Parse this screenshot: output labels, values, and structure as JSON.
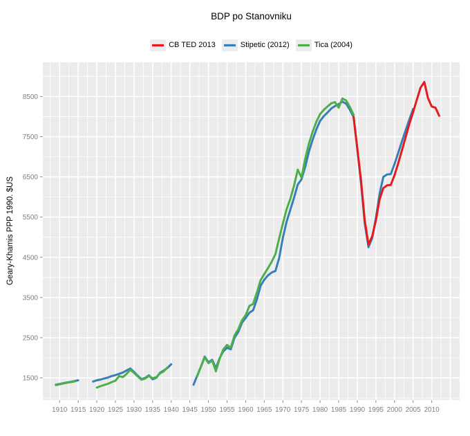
{
  "title": "BDP po Stanovniku",
  "y_axis_label": "Geary-Khamis PPP 1990. $US",
  "legend": [
    {
      "label": "CB TED 2013",
      "color": "#E41A1C"
    },
    {
      "label": "Stipetic (2012)",
      "color": "#377EB8"
    },
    {
      "label": "Tica (2004)",
      "color": "#4DAF4A"
    }
  ],
  "colors": {
    "panel_bg": "#EBEBEB",
    "grid": "#FFFFFF",
    "tick_mark": "#858585",
    "tick_label": "#7F7F7F",
    "legend_key_bg": "#ECECEC",
    "title_text": "#000000"
  },
  "chart_data": {
    "type": "line",
    "title": "BDP po Stanovniku",
    "xlabel": "",
    "ylabel": "Geary-Khamis PPP 1990. $US",
    "xlim": [
      1905.5,
      2017.5
    ],
    "ylim": [
      950,
      9350
    ],
    "x_ticks": [
      1910,
      1915,
      1920,
      1925,
      1930,
      1935,
      1940,
      1945,
      1950,
      1955,
      1960,
      1965,
      1970,
      1975,
      1980,
      1985,
      1990,
      1995,
      2000,
      2005,
      2010
    ],
    "y_ticks": [
      1500,
      2500,
      3500,
      4500,
      5500,
      6500,
      7500,
      8500
    ],
    "grid": {
      "major": true,
      "minor": true
    },
    "legend_position": "top",
    "series": [
      {
        "name": "Stipetic (2012)",
        "color": "#377EB8",
        "segments": [
          [
            [
              1909,
              1330
            ],
            [
              1910,
              1350
            ],
            [
              1911,
              1368
            ],
            [
              1912,
              1388
            ],
            [
              1913,
              1402
            ],
            [
              1914,
              1420
            ],
            [
              1915,
              1440
            ]
          ],
          [
            [
              1919,
              1410
            ],
            [
              1920,
              1440
            ],
            [
              1921,
              1460
            ],
            [
              1922,
              1485
            ],
            [
              1923,
              1510
            ],
            [
              1924,
              1545
            ],
            [
              1925,
              1570
            ],
            [
              1926,
              1600
            ],
            [
              1927,
              1635
            ],
            [
              1928,
              1685
            ],
            [
              1929,
              1735
            ],
            [
              1930,
              1650
            ],
            [
              1931,
              1555
            ],
            [
              1932,
              1470
            ],
            [
              1933,
              1500
            ],
            [
              1934,
              1565
            ],
            [
              1935,
              1465
            ],
            [
              1936,
              1505
            ],
            [
              1937,
              1630
            ],
            [
              1938,
              1685
            ],
            [
              1939,
              1750
            ],
            [
              1940,
              1840
            ]
          ],
          [
            [
              1946,
              1330
            ],
            [
              1947,
              1560
            ],
            [
              1948,
              1780
            ],
            [
              1949,
              2030
            ],
            [
              1950,
              1890
            ],
            [
              1951,
              1950
            ],
            [
              1952,
              1740
            ],
            [
              1953,
              1990
            ],
            [
              1954,
              2160
            ],
            [
              1955,
              2250
            ],
            [
              1956,
              2210
            ],
            [
              1957,
              2500
            ],
            [
              1958,
              2640
            ],
            [
              1959,
              2870
            ],
            [
              1960,
              2990
            ],
            [
              1961,
              3120
            ],
            [
              1962,
              3180
            ],
            [
              1963,
              3450
            ],
            [
              1964,
              3790
            ],
            [
              1965,
              3940
            ],
            [
              1966,
              4050
            ],
            [
              1967,
              4120
            ],
            [
              1968,
              4160
            ],
            [
              1969,
              4480
            ],
            [
              1970,
              4990
            ],
            [
              1971,
              5380
            ],
            [
              1972,
              5680
            ],
            [
              1973,
              5980
            ],
            [
              1974,
              6310
            ],
            [
              1975,
              6440
            ],
            [
              1976,
              6750
            ],
            [
              1977,
              7130
            ],
            [
              1978,
              7420
            ],
            [
              1979,
              7680
            ],
            [
              1980,
              7890
            ],
            [
              1981,
              8010
            ],
            [
              1982,
              8100
            ],
            [
              1983,
              8200
            ],
            [
              1984,
              8260
            ],
            [
              1985,
              8310
            ],
            [
              1986,
              8370
            ],
            [
              1987,
              8320
            ],
            [
              1988,
              8170
            ],
            [
              1989,
              7990
            ],
            [
              1990,
              7200
            ],
            [
              1991,
              6350
            ],
            [
              1992,
              5350
            ],
            [
              1993,
              4750
            ],
            [
              1994,
              4980
            ],
            [
              1995,
              5480
            ],
            [
              1996,
              6080
            ],
            [
              1997,
              6500
            ],
            [
              1998,
              6560
            ],
            [
              1999,
              6570
            ],
            [
              2000,
              6820
            ],
            [
              2001,
              7100
            ],
            [
              2002,
              7380
            ],
            [
              2003,
              7660
            ],
            [
              2004,
              7930
            ],
            [
              2005,
              8190
            ]
          ]
        ]
      },
      {
        "name": "Tica (2004)",
        "color": "#4DAF4A",
        "segments": [
          [
            [
              1909,
              1320
            ],
            [
              1910,
              1340
            ],
            [
              1911,
              1360
            ],
            [
              1912,
              1380
            ],
            [
              1913,
              1395
            ],
            [
              1914,
              1410
            ]
          ],
          [
            [
              1920,
              1260
            ],
            [
              1921,
              1295
            ],
            [
              1922,
              1325
            ],
            [
              1923,
              1355
            ],
            [
              1924,
              1395
            ],
            [
              1925,
              1430
            ],
            [
              1926,
              1545
            ],
            [
              1927,
              1520
            ],
            [
              1928,
              1600
            ],
            [
              1929,
              1700
            ],
            [
              1930,
              1625
            ],
            [
              1931,
              1535
            ],
            [
              1932,
              1455
            ],
            [
              1933,
              1485
            ],
            [
              1934,
              1545
            ],
            [
              1935,
              1490
            ],
            [
              1936,
              1520
            ],
            [
              1937,
              1615
            ],
            [
              1938,
              1665
            ],
            [
              1939,
              1765
            ]
          ],
          [
            [
              1947,
              1540
            ],
            [
              1948,
              1790
            ],
            [
              1949,
              2010
            ],
            [
              1950,
              1865
            ],
            [
              1951,
              1930
            ],
            [
              1952,
              1665
            ],
            [
              1953,
              1975
            ],
            [
              1954,
              2210
            ],
            [
              1955,
              2320
            ],
            [
              1956,
              2250
            ],
            [
              1957,
              2560
            ],
            [
              1958,
              2710
            ],
            [
              1959,
              2930
            ],
            [
              1960,
              3060
            ],
            [
              1961,
              3290
            ],
            [
              1962,
              3340
            ],
            [
              1963,
              3620
            ],
            [
              1964,
              3930
            ],
            [
              1965,
              4080
            ],
            [
              1966,
              4230
            ],
            [
              1967,
              4390
            ],
            [
              1968,
              4580
            ],
            [
              1969,
              4970
            ],
            [
              1970,
              5340
            ],
            [
              1971,
              5690
            ],
            [
              1972,
              5950
            ],
            [
              1973,
              6280
            ],
            [
              1974,
              6680
            ],
            [
              1975,
              6480
            ],
            [
              1976,
              6950
            ],
            [
              1977,
              7330
            ],
            [
              1978,
              7620
            ],
            [
              1979,
              7870
            ],
            [
              1980,
              8060
            ],
            [
              1981,
              8170
            ],
            [
              1982,
              8250
            ],
            [
              1983,
              8330
            ],
            [
              1984,
              8360
            ],
            [
              1985,
              8220
            ],
            [
              1986,
              8450
            ],
            [
              1987,
              8400
            ],
            [
              1988,
              8240
            ],
            [
              1989,
              8040
            ]
          ]
        ]
      },
      {
        "name": "CB TED 2013",
        "color": "#E41A1C",
        "segments": [
          [
            [
              1989,
              7990
            ],
            [
              1990,
              7220
            ],
            [
              1991,
              6420
            ],
            [
              1992,
              5420
            ],
            [
              1993,
              4820
            ],
            [
              1994,
              5020
            ],
            [
              1995,
              5420
            ],
            [
              1996,
              5940
            ],
            [
              1997,
              6220
            ],
            [
              1998,
              6290
            ],
            [
              1999,
              6300
            ],
            [
              2000,
              6540
            ],
            [
              2001,
              6840
            ],
            [
              2002,
              7160
            ],
            [
              2003,
              7490
            ],
            [
              2004,
              7820
            ],
            [
              2005,
              8110
            ],
            [
              2006,
              8420
            ],
            [
              2007,
              8720
            ],
            [
              2008,
              8860
            ],
            [
              2009,
              8460
            ],
            [
              2010,
              8250
            ],
            [
              2011,
              8220
            ],
            [
              2012,
              8020
            ]
          ]
        ]
      }
    ]
  }
}
